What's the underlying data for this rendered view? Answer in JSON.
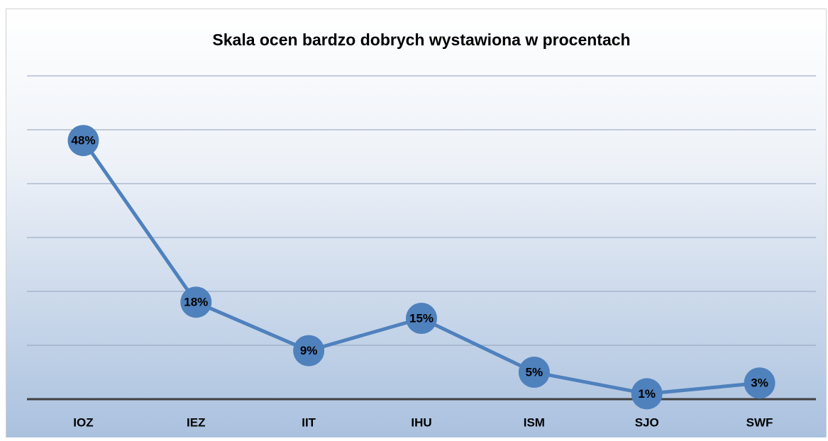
{
  "chart_data": {
    "type": "line",
    "title": "Skala ocen bardzo dobrych wystawiona w procentach",
    "categories": [
      "IOZ",
      "IEZ",
      "IIT",
      "IHU",
      "ISM",
      "SJO",
      "SWF"
    ],
    "values": [
      48,
      18,
      9,
      15,
      5,
      1,
      3
    ],
    "value_labels": [
      "48%",
      "18%",
      "9%",
      "15%",
      "5%",
      "1%",
      "3%"
    ],
    "color": "#4f81bd",
    "ylim": [
      0,
      60
    ],
    "yticks": [
      0,
      10,
      20,
      30,
      40,
      50,
      60
    ],
    "grid": true
  }
}
